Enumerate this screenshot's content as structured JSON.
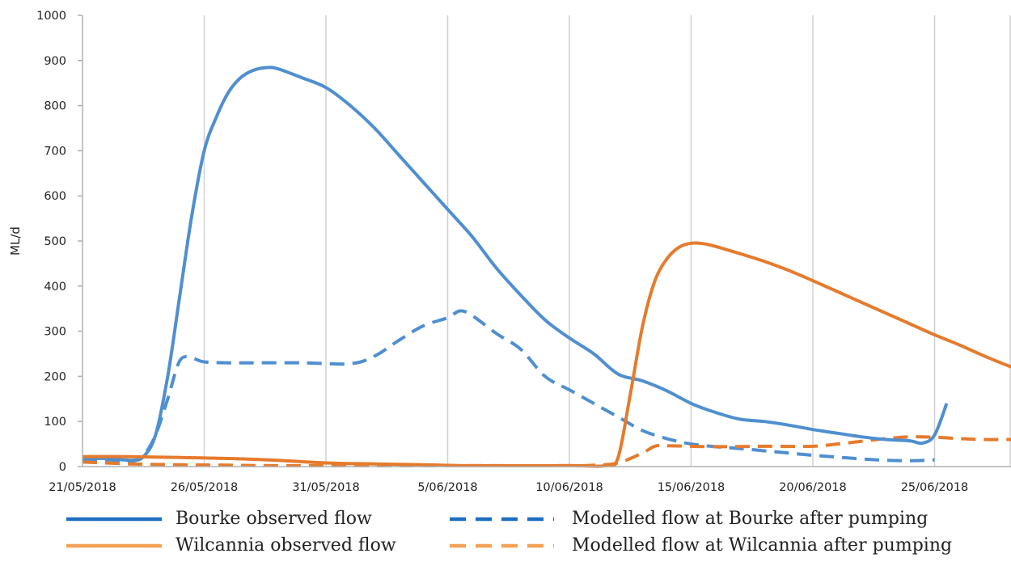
{
  "chart_data": {
    "type": "line",
    "title": "",
    "xlabel": "",
    "ylabel": "ML/d",
    "x_start_date": "2018-05-21",
    "x_end_date": "2018-06-28",
    "x_tick_labels": [
      "21/05/2018",
      "26/05/2018",
      "31/05/2018",
      "5/06/2018",
      "10/06/2018",
      "15/06/2018",
      "20/06/2018",
      "25/06/2018"
    ],
    "ylim": [
      0,
      1000
    ],
    "y_ticks": [
      "0",
      "100",
      "200",
      "300",
      "400",
      "500",
      "600",
      "700",
      "800",
      "900",
      "1000"
    ],
    "grid": "vertical",
    "legend_position": "bottom",
    "colors": {
      "bourke": "#4f8fd0",
      "wilcannia": "#e57b2c",
      "bourke_legend": "#1c6ec1",
      "wilcannia_legend": "#f4a155"
    },
    "series": [
      {
        "name": "Bourke observed flow",
        "style": "solid",
        "color": "#4f8fd0",
        "legend_color": "#1c6ec1",
        "points": [
          [
            "2018-05-21",
            18
          ],
          [
            "2018-05-22",
            18
          ],
          [
            "2018-05-23",
            14
          ],
          [
            "2018-05-23 12:00",
            22
          ],
          [
            "2018-05-24",
            70
          ],
          [
            "2018-05-24 12:00",
            200
          ],
          [
            "2018-05-25",
            380
          ],
          [
            "2018-05-25 12:00",
            560
          ],
          [
            "2018-05-26",
            700
          ],
          [
            "2018-05-26 12:00",
            775
          ],
          [
            "2018-05-27",
            830
          ],
          [
            "2018-05-27 12:00",
            862
          ],
          [
            "2018-05-28",
            878
          ],
          [
            "2018-05-28 12:00",
            884
          ],
          [
            "2018-05-29",
            882
          ],
          [
            "2018-05-30",
            862
          ],
          [
            "2018-05-31",
            840
          ],
          [
            "2018-06-01",
            800
          ],
          [
            "2018-06-02",
            750
          ],
          [
            "2018-06-03",
            690
          ],
          [
            "2018-06-04",
            630
          ],
          [
            "2018-06-05",
            570
          ],
          [
            "2018-06-06",
            510
          ],
          [
            "2018-06-07",
            440
          ],
          [
            "2018-06-08",
            380
          ],
          [
            "2018-06-09",
            325
          ],
          [
            "2018-06-10",
            285
          ],
          [
            "2018-06-11",
            250
          ],
          [
            "2018-06-12",
            205
          ],
          [
            "2018-06-13",
            190
          ],
          [
            "2018-06-14",
            168
          ],
          [
            "2018-06-15",
            140
          ],
          [
            "2018-06-16",
            120
          ],
          [
            "2018-06-17",
            105
          ],
          [
            "2018-06-18",
            100
          ],
          [
            "2018-06-19",
            92
          ],
          [
            "2018-06-20",
            82
          ],
          [
            "2018-06-21",
            74
          ],
          [
            "2018-06-22",
            66
          ],
          [
            "2018-06-23",
            60
          ],
          [
            "2018-06-24",
            57
          ],
          [
            "2018-06-24 12:00",
            52
          ],
          [
            "2018-06-25",
            70
          ],
          [
            "2018-06-25 12:00",
            140
          ]
        ]
      },
      {
        "name": "Wilcannia observed flow",
        "style": "solid",
        "color": "#e57b2c",
        "legend_color": "#f4a155",
        "points": [
          [
            "2018-05-21",
            22
          ],
          [
            "2018-05-23",
            22
          ],
          [
            "2018-05-25",
            20
          ],
          [
            "2018-05-27",
            18
          ],
          [
            "2018-05-29",
            14
          ],
          [
            "2018-05-31",
            8
          ],
          [
            "2018-06-02",
            6
          ],
          [
            "2018-06-04",
            4
          ],
          [
            "2018-06-06",
            2
          ],
          [
            "2018-06-10",
            2
          ],
          [
            "2018-06-11 12:00",
            2
          ],
          [
            "2018-06-12",
            20
          ],
          [
            "2018-06-12 12:00",
            160
          ],
          [
            "2018-06-13",
            310
          ],
          [
            "2018-06-13 12:00",
            410
          ],
          [
            "2018-06-14",
            460
          ],
          [
            "2018-06-14 12:00",
            486
          ],
          [
            "2018-06-15",
            495
          ],
          [
            "2018-06-15 12:00",
            494
          ],
          [
            "2018-06-16",
            488
          ],
          [
            "2018-06-17",
            472
          ],
          [
            "2018-06-18",
            455
          ],
          [
            "2018-06-19",
            435
          ],
          [
            "2018-06-20",
            412
          ],
          [
            "2018-06-21",
            388
          ],
          [
            "2018-06-22",
            364
          ],
          [
            "2018-06-23",
            340
          ],
          [
            "2018-06-24",
            316
          ],
          [
            "2018-06-25",
            292
          ],
          [
            "2018-06-26",
            270
          ],
          [
            "2018-06-27",
            246
          ],
          [
            "2018-06-28",
            224
          ],
          [
            "2018-06-29",
            206
          ]
        ]
      },
      {
        "name": "Modelled flow at Bourke after pumping",
        "style": "dashed",
        "color": "#4f8fd0",
        "legend_color": "#1c6ec1",
        "points": [
          [
            "2018-05-21",
            15
          ],
          [
            "2018-05-22",
            15
          ],
          [
            "2018-05-23",
            12
          ],
          [
            "2018-05-23 12:00",
            25
          ],
          [
            "2018-05-24",
            70
          ],
          [
            "2018-05-24 12:00",
            150
          ],
          [
            "2018-05-25",
            235
          ],
          [
            "2018-05-25 12:00",
            240
          ],
          [
            "2018-05-26",
            232
          ],
          [
            "2018-05-27",
            230
          ],
          [
            "2018-05-28",
            230
          ],
          [
            "2018-05-30",
            230
          ],
          [
            "2018-06-01",
            228
          ],
          [
            "2018-06-02",
            245
          ],
          [
            "2018-06-03",
            280
          ],
          [
            "2018-06-04",
            312
          ],
          [
            "2018-06-05",
            330
          ],
          [
            "2018-06-05 12:00",
            345
          ],
          [
            "2018-06-06",
            335
          ],
          [
            "2018-06-07",
            295
          ],
          [
            "2018-06-08",
            260
          ],
          [
            "2018-06-09",
            200
          ],
          [
            "2018-06-10",
            170
          ],
          [
            "2018-06-11",
            140
          ],
          [
            "2018-06-12",
            110
          ],
          [
            "2018-06-13",
            80
          ],
          [
            "2018-06-14",
            62
          ],
          [
            "2018-06-15",
            50
          ],
          [
            "2018-06-16",
            44
          ],
          [
            "2018-06-17",
            40
          ],
          [
            "2018-06-18",
            35
          ],
          [
            "2018-06-19",
            30
          ],
          [
            "2018-06-20",
            25
          ],
          [
            "2018-06-21",
            21
          ],
          [
            "2018-06-22",
            17
          ],
          [
            "2018-06-23",
            14
          ],
          [
            "2018-06-24",
            13
          ],
          [
            "2018-06-25",
            15
          ]
        ]
      },
      {
        "name": "Modelled flow at Wilcannia after pumping",
        "style": "dashed",
        "color": "#e57b2c",
        "legend_color": "#f4a155",
        "points": [
          [
            "2018-05-21",
            10
          ],
          [
            "2018-05-23",
            6
          ],
          [
            "2018-05-25",
            4
          ],
          [
            "2018-05-27",
            3
          ],
          [
            "2018-05-29",
            2
          ],
          [
            "2018-06-02",
            2
          ],
          [
            "2018-06-06",
            2
          ],
          [
            "2018-06-10",
            2
          ],
          [
            "2018-06-11",
            3
          ],
          [
            "2018-06-12",
            8
          ],
          [
            "2018-06-13",
            30
          ],
          [
            "2018-06-13 12:00",
            45
          ],
          [
            "2018-06-14",
            46
          ],
          [
            "2018-06-16",
            44
          ],
          [
            "2018-06-18",
            45
          ],
          [
            "2018-06-20",
            45
          ],
          [
            "2018-06-21",
            50
          ],
          [
            "2018-06-22",
            56
          ],
          [
            "2018-06-23",
            62
          ],
          [
            "2018-06-24",
            66
          ],
          [
            "2018-06-25",
            65
          ],
          [
            "2018-06-26",
            62
          ],
          [
            "2018-06-27",
            60
          ],
          [
            "2018-06-28",
            60
          ],
          [
            "2018-06-29",
            60
          ]
        ]
      }
    ]
  }
}
